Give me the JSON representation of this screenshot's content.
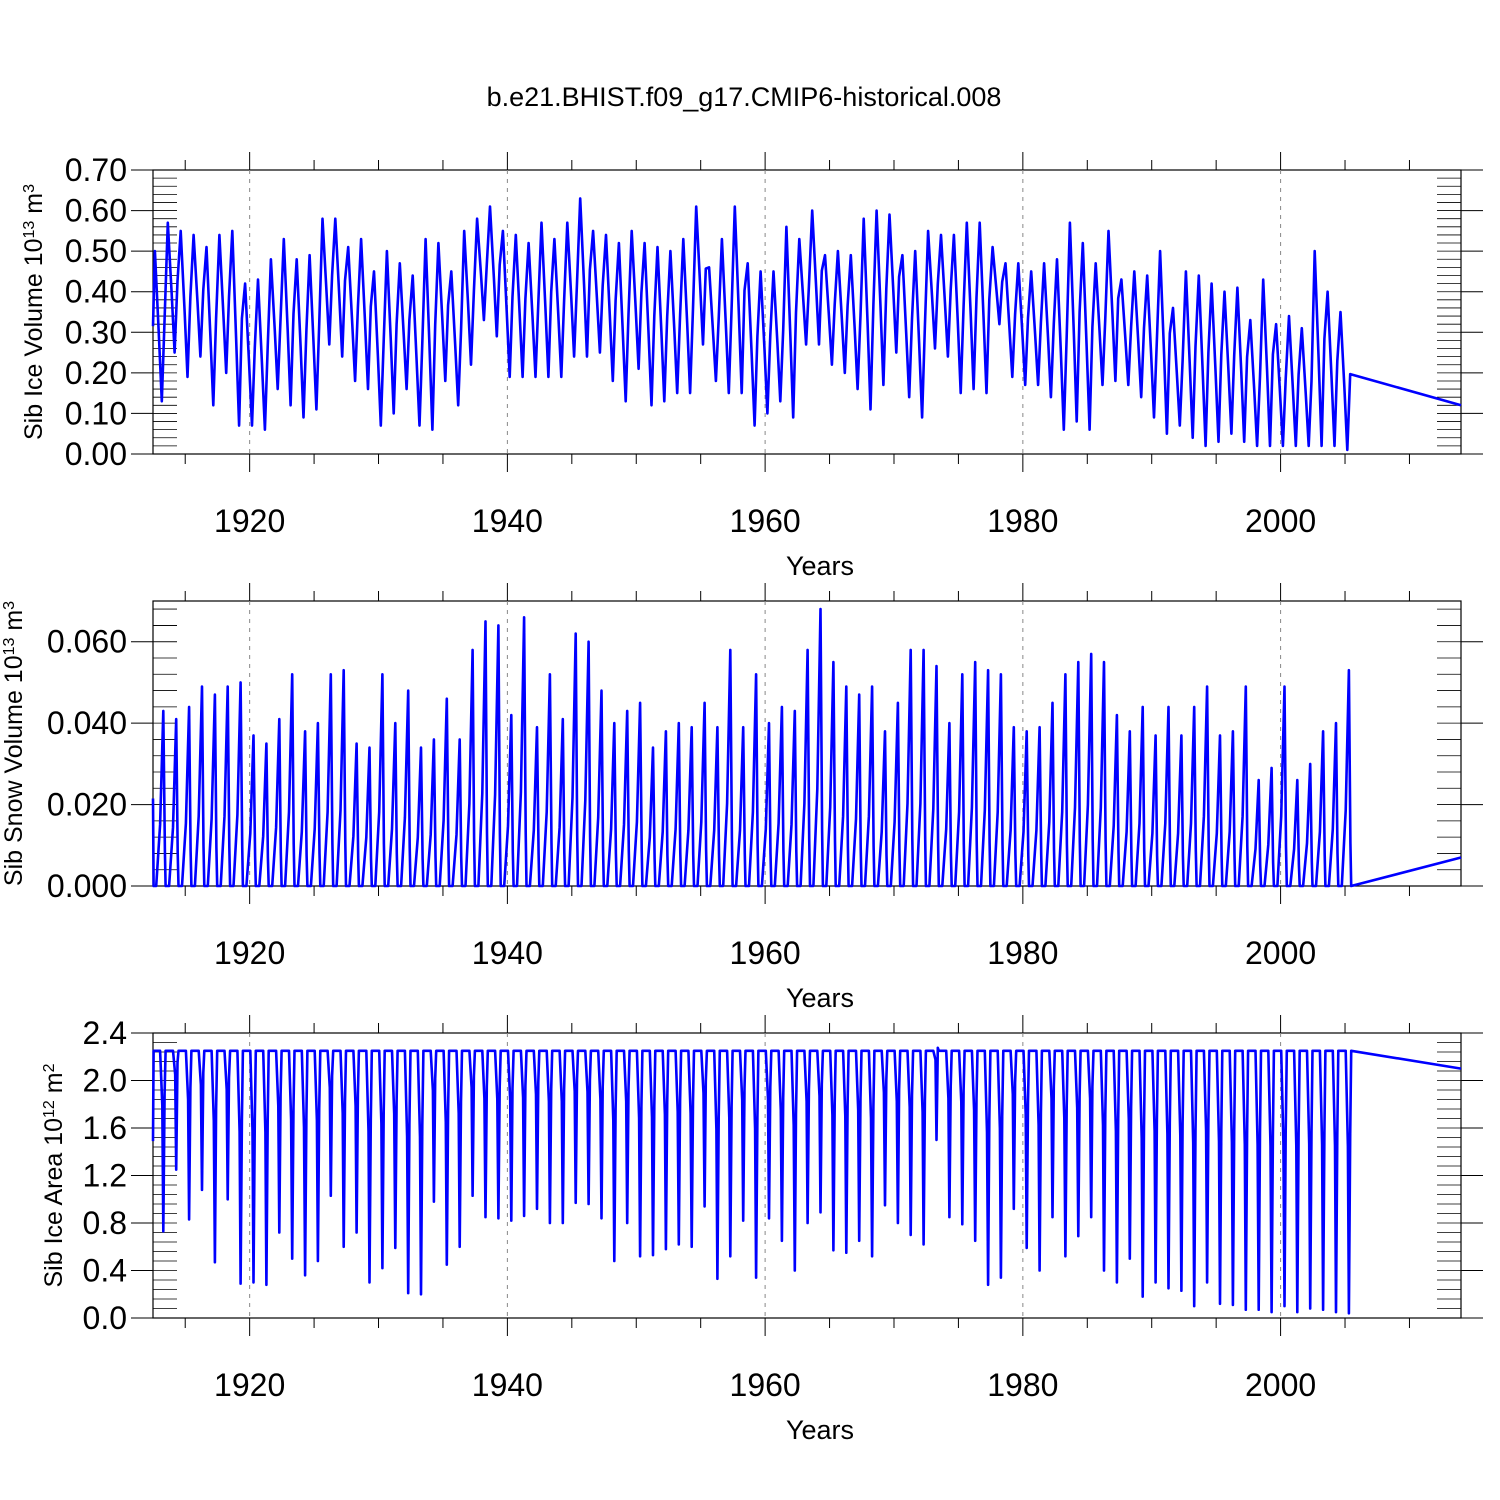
{
  "title": "b.e21.BHIST.f09_g17.CMIP6-historical.008",
  "chart_data": [
    {
      "type": "line",
      "title": "",
      "ylabel": "Sib Ice Volume 10",
      "ylabel_exp": "13",
      "ylabel_unit": " m",
      "ylabel_unit_exp": "3",
      "xlabel": "Years",
      "xlim": [
        1912.5,
        2014.0
      ],
      "ylim": [
        0.0,
        0.7
      ],
      "yticks": [
        0.0,
        0.1,
        0.2,
        0.3,
        0.4,
        0.5,
        0.6,
        0.7
      ],
      "ytick_labels": [
        "0.00",
        "0.10",
        "0.20",
        "0.30",
        "0.40",
        "0.50",
        "0.60",
        "0.70"
      ],
      "xticks": [
        1920,
        1940,
        1960,
        1980,
        2000
      ],
      "xtick_labels": [
        "1920",
        "1940",
        "1960",
        "1980",
        "2000"
      ],
      "grid": "vertical dashed at major x ticks",
      "color": "#0000ff",
      "series": [
        {
          "name": "Sib Ice Volume",
          "x_start": 1912.5,
          "x_step": 1.0,
          "seasonal_max": [
            0.5,
            0.57,
            0.55,
            0.54,
            0.51,
            0.54,
            0.55,
            0.42,
            0.43,
            0.48,
            0.53,
            0.48,
            0.49,
            0.58,
            0.58,
            0.51,
            0.53,
            0.45,
            0.5,
            0.47,
            0.44,
            0.53,
            0.52,
            0.45,
            0.55,
            0.58,
            0.61,
            0.55,
            0.54,
            0.52,
            0.57,
            0.53,
            0.57,
            0.63,
            0.55,
            0.54,
            0.52,
            0.55,
            0.52,
            0.51,
            0.5,
            0.53,
            0.61,
            0.46,
            0.53,
            0.61,
            0.47,
            0.45,
            0.45,
            0.56,
            0.53,
            0.6,
            0.49,
            0.5,
            0.49,
            0.58,
            0.6,
            0.59,
            0.49,
            0.5,
            0.55,
            0.54,
            0.54,
            0.57,
            0.57,
            0.51,
            0.47,
            0.47,
            0.45,
            0.47,
            0.48,
            0.57,
            0.52,
            0.47,
            0.55,
            0.43,
            0.45,
            0.44,
            0.5,
            0.36,
            0.45,
            0.44,
            0.42,
            0.4,
            0.41,
            0.33,
            0.43,
            0.32,
            0.34,
            0.31,
            0.5,
            0.4,
            0.35
          ],
          "seasonal_min": [
            0.13,
            0.25,
            0.19,
            0.24,
            0.12,
            0.2,
            0.07,
            0.07,
            0.06,
            0.16,
            0.12,
            0.09,
            0.11,
            0.27,
            0.24,
            0.18,
            0.16,
            0.07,
            0.1,
            0.16,
            0.07,
            0.06,
            0.18,
            0.12,
            0.22,
            0.33,
            0.29,
            0.19,
            0.19,
            0.19,
            0.19,
            0.19,
            0.24,
            0.24,
            0.25,
            0.18,
            0.13,
            0.21,
            0.12,
            0.13,
            0.15,
            0.15,
            0.27,
            0.18,
            0.15,
            0.15,
            0.07,
            0.1,
            0.13,
            0.09,
            0.27,
            0.27,
            0.22,
            0.2,
            0.16,
            0.11,
            0.17,
            0.25,
            0.14,
            0.09,
            0.26,
            0.24,
            0.15,
            0.16,
            0.15,
            0.32,
            0.19,
            0.17,
            0.17,
            0.14,
            0.06,
            0.08,
            0.06,
            0.17,
            0.18,
            0.17,
            0.14,
            0.09,
            0.05,
            0.07,
            0.04,
            0.02,
            0.03,
            0.05,
            0.03,
            0.02,
            0.02,
            0.02,
            0.02,
            0.02,
            0.02,
            0.02,
            0.01
          ],
          "end_value": 0.12
        }
      ]
    },
    {
      "type": "line",
      "title": "",
      "ylabel": "Sib Snow Volume 10",
      "ylabel_exp": "13",
      "ylabel_unit": " m",
      "ylabel_unit_exp": "3",
      "xlabel": "Years",
      "xlim": [
        1912.5,
        2014.0
      ],
      "ylim": [
        0.0,
        0.07
      ],
      "yticks": [
        0.0,
        0.02,
        0.04,
        0.06
      ],
      "ytick_labels": [
        "0.000",
        "0.020",
        "0.040",
        "0.060"
      ],
      "xticks": [
        1920,
        1940,
        1960,
        1980,
        2000
      ],
      "xtick_labels": [
        "1920",
        "1940",
        "1960",
        "1980",
        "2000"
      ],
      "grid": "vertical dashed at major x ticks",
      "color": "#0000ff",
      "series": [
        {
          "name": "Sib Snow Volume",
          "x_start": 1912.5,
          "x_step": 1.0,
          "seasonal_max": [
            0.043,
            0.041,
            0.044,
            0.049,
            0.047,
            0.049,
            0.05,
            0.037,
            0.035,
            0.041,
            0.052,
            0.038,
            0.04,
            0.052,
            0.053,
            0.035,
            0.034,
            0.052,
            0.04,
            0.048,
            0.034,
            0.036,
            0.046,
            0.036,
            0.058,
            0.065,
            0.064,
            0.042,
            0.066,
            0.039,
            0.052,
            0.041,
            0.062,
            0.06,
            0.048,
            0.04,
            0.043,
            0.045,
            0.034,
            0.038,
            0.04,
            0.039,
            0.045,
            0.039,
            0.058,
            0.039,
            0.052,
            0.04,
            0.044,
            0.043,
            0.058,
            0.068,
            0.055,
            0.049,
            0.047,
            0.049,
            0.038,
            0.045,
            0.058,
            0.058,
            0.054,
            0.04,
            0.052,
            0.055,
            0.053,
            0.052,
            0.039,
            0.038,
            0.039,
            0.045,
            0.052,
            0.055,
            0.057,
            0.055,
            0.042,
            0.038,
            0.044,
            0.037,
            0.044,
            0.037,
            0.044,
            0.049,
            0.037,
            0.038,
            0.049,
            0.026,
            0.029,
            0.049,
            0.026,
            0.03,
            0.038,
            0.04,
            0.053
          ],
          "seasonal_min": 0.0,
          "end_value": 0.007
        }
      ]
    },
    {
      "type": "line",
      "title": "",
      "ylabel": "Sib Ice Area 10",
      "ylabel_exp": "12",
      "ylabel_unit": " m",
      "ylabel_unit_exp": "2",
      "xlabel": "Years",
      "xlim": [
        1912.5,
        2014.0
      ],
      "ylim": [
        0.0,
        2.4
      ],
      "yticks": [
        0.0,
        0.4,
        0.8,
        1.2,
        1.6,
        2.0,
        2.4
      ],
      "ytick_labels": [
        "0.0",
        "0.4",
        "0.8",
        "1.2",
        "1.6",
        "2.0",
        "2.4"
      ],
      "xticks": [
        1920,
        1940,
        1960,
        1980,
        2000
      ],
      "xtick_labels": [
        "1920",
        "1940",
        "1960",
        "1980",
        "2000"
      ],
      "grid": "vertical dashed at major x ticks",
      "color": "#0000ff",
      "series": [
        {
          "name": "Sib Ice Area",
          "x_start": 1912.5,
          "x_step": 1.0,
          "seasonal_max": 2.25,
          "seasonal_min": [
            0.73,
            1.25,
            0.83,
            1.08,
            0.47,
            1.0,
            0.29,
            0.3,
            0.28,
            0.72,
            0.5,
            0.36,
            0.48,
            1.03,
            0.6,
            0.72,
            0.3,
            0.42,
            0.59,
            0.21,
            0.2,
            0.98,
            0.45,
            0.6,
            1.03,
            0.85,
            0.84,
            0.82,
            0.86,
            0.92,
            0.8,
            0.8,
            0.97,
            0.96,
            0.84,
            0.48,
            0.8,
            0.52,
            0.53,
            0.58,
            0.62,
            0.6,
            0.94,
            0.33,
            0.52,
            0.82,
            0.34,
            0.84,
            0.65,
            0.4,
            0.8,
            0.89,
            0.57,
            0.55,
            0.65,
            0.52,
            0.95,
            0.8,
            0.7,
            0.62,
            1.5,
            0.85,
            0.79,
            0.65,
            0.28,
            0.34,
            0.92,
            0.59,
            0.4,
            0.85,
            0.52,
            0.69,
            0.85,
            0.4,
            0.3,
            0.5,
            0.18,
            0.3,
            0.25,
            0.23,
            0.1,
            0.3,
            0.12,
            0.11,
            0.07,
            0.07,
            0.05,
            0.1,
            0.05,
            0.08,
            0.07,
            0.05,
            0.04
          ],
          "end_value": 2.1
        }
      ]
    }
  ]
}
